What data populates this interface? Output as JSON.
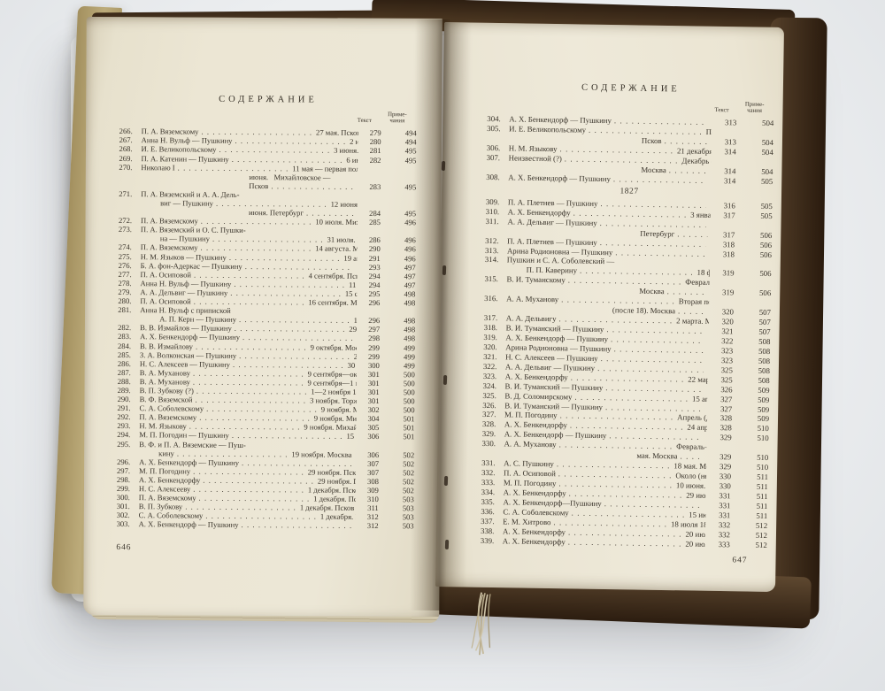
{
  "photo_of": "open book spread — table of contents of a Pushkin correspondence volume",
  "colors": {
    "paper": "#ece6d4",
    "ink": "#39332a",
    "cover_tan": "#b4a170",
    "cover_dark_edge": "#3a2a18",
    "background": "#eceef0"
  },
  "left_page": {
    "header": "СОДЕРЖАНИЕ",
    "col_text": "Текст",
    "col_note1": "Приме-",
    "col_note2": "чания",
    "page_number": "646",
    "rows": [
      {
        "n": "266.",
        "name": "П. А. Вяземскому",
        "nd": 1,
        "date": "27 мая. Псков",
        "dd": 1,
        "t": "279",
        "p": "494"
      },
      {
        "n": "267.",
        "name": "Анна Н. Вульф — Пушкину",
        "nd": 1,
        "date": "2 июня. Малинники",
        "dd": 1,
        "t": "280",
        "p": "494"
      },
      {
        "n": "268.",
        "name": "И. Е. Великопольскому",
        "nd": 1,
        "date": "3 июня. Преображенское",
        "dd": 1,
        "t": "281",
        "p": "495"
      },
      {
        "n": "269.",
        "name": "П. А. Катенин — Пушкину",
        "nd": 1,
        "date": "6 июня. Петербург",
        "dd": 1,
        "t": "282",
        "p": "495"
      },
      {
        "n": "270.",
        "name": "Николаю I",
        "nd": 1,
        "date": "11 мая — первая половина"
      },
      {
        "date": "июня.   Михайловское —"
      },
      {
        "date": "Псков",
        "dd": 1,
        "t": "283",
        "p": "495"
      },
      {
        "n": "271.",
        "name": "П. А. Вяземский и А. А. Дель-"
      },
      {
        "name": "виг — Пушкину",
        "ni": 1,
        "nd": 1,
        "date": "12 июня и вторая половина"
      },
      {
        "date": "июня. Петербург",
        "dd": 1,
        "t": "284",
        "p": "495"
      },
      {
        "n": "272.",
        "name": "П. А. Вяземскому",
        "nd": 1,
        "date": "10 июля. Михайловское",
        "dd": 1,
        "t": "285",
        "p": "496"
      },
      {
        "n": "273.",
        "name": "П. А. Вяземский и О. С. Пушки-"
      },
      {
        "name": "на — Пушкину",
        "ni": 1,
        "nd": 1,
        "date": "31 июля. Ревель",
        "dd": 1,
        "t": "286",
        "p": "496"
      },
      {
        "n": "274.",
        "name": "П. А. Вяземскому",
        "nd": 1,
        "date": "14 августа. Михайловское",
        "dd": 1,
        "t": "290",
        "p": "496"
      },
      {
        "n": "275.",
        "name": "Н. М. Языков — Пушкину",
        "nd": 1,
        "date": "19 августа. Дерпт",
        "dd": 1,
        "t": "291",
        "p": "496"
      },
      {
        "n": "276.",
        "name": "Б. А. фон-Адеркас — Пушкину",
        "nd": 1,
        "date": "3 сентября. Псков",
        "dd": 1,
        "t": "293",
        "p": "497"
      },
      {
        "n": "277.",
        "name": "П. А. Осиповой",
        "nd": 1,
        "date": "4 сентября. Псков",
        "dd": 1,
        "t": "294",
        "p": "497"
      },
      {
        "n": "278.",
        "name": "Анна Н. Вульф — Пушкину",
        "nd": 1,
        "date": "11 сентября. Петербург",
        "dd": 1,
        "t": "294",
        "p": "497"
      },
      {
        "n": "279.",
        "name": "А. А. Дельвиг — Пушкину",
        "nd": 1,
        "date": "15 сентября. Петербург",
        "dd": 1,
        "t": "295",
        "p": "498"
      },
      {
        "n": "280.",
        "name": "П. А. Осиповой",
        "nd": 1,
        "date": "16 сентября. Москва",
        "dd": 1,
        "t": "296",
        "p": "498"
      },
      {
        "n": "281.",
        "name": "Анна Н. Вульф с припиской"
      },
      {
        "name": "А. П. Керн — Пушкину",
        "ni": 1,
        "nd": 1,
        "date": "16 сентября. Петербург",
        "dd": 1,
        "t": "296",
        "p": "498"
      },
      {
        "n": "282.",
        "name": "В. В. Измайлов — Пушкину",
        "nd": 1,
        "date": "29 сентября. Подмосковная.",
        "t": "297",
        "p": "498"
      },
      {
        "n": "283.",
        "name": "А. Х. Бенкендорф — Пушкину",
        "nd": 1,
        "date": "30 сентября. Москва",
        "dd": 1,
        "t": "298",
        "p": "498"
      },
      {
        "n": "284.",
        "name": "В. В. Измайлову",
        "nd": 1,
        "date": "9 октября. Москва",
        "dd": 1,
        "t": "299",
        "p": "499"
      },
      {
        "n": "285.",
        "name": "З. А. Волконская — Пушкину",
        "nd": 1,
        "date": "29 октября. Москва",
        "dd": 1,
        "t": "299",
        "p": "499"
      },
      {
        "n": "286.",
        "name": "Н. С. Алексеев — Пушкину",
        "nd": 1,
        "date": "30 октября. Кишинев",
        "dd": 1,
        "t": "300",
        "p": "499"
      },
      {
        "n": "287.",
        "name": "В. А. Муханову",
        "nd": 1,
        "date": "9 сентября—октябрь. Москва",
        "t": "301",
        "p": "500"
      },
      {
        "n": "288.",
        "name": "В. А. Муханову",
        "nd": 1,
        "date": "9 сентября—1 ноября. Москва",
        "t": "301",
        "p": "500"
      },
      {
        "n": "289.",
        "name": "В. П. Зубкову (?)",
        "nd": 1,
        "date": "1—2 ноября 1826 (?). Москва",
        "t": "301",
        "p": "500"
      },
      {
        "n": "290.",
        "name": "В. Ф. Вяземской",
        "nd": 1,
        "date": "3 ноября. Торжок",
        "dd": 1,
        "t": "301",
        "p": "500"
      },
      {
        "n": "291.",
        "name": "С. А. Соболевскому",
        "nd": 1,
        "date": "9 ноября. Михайловское",
        "dd": 1,
        "t": "302",
        "p": "500"
      },
      {
        "n": "292.",
        "name": "П. А. Вяземскому",
        "nd": 1,
        "date": "9 ноября. Михайловское",
        "dd": 1,
        "t": "304",
        "p": "501"
      },
      {
        "n": "293.",
        "name": "Н. М. Языкову",
        "nd": 1,
        "date": "9 ноября. Михайловское",
        "dd": 1,
        "t": "305",
        "p": "501"
      },
      {
        "n": "294.",
        "name": "М. П. Погодин — Пушкину",
        "nd": 1,
        "date": "15 ноября. Москва",
        "dd": 1,
        "t": "306",
        "p": "501"
      },
      {
        "n": "295.",
        "name": "В. Ф. и П. А. Вяземские — Пуш-"
      },
      {
        "name": "кину",
        "ni": 1,
        "nd": 1,
        "date": "19 ноября. Москва",
        "dd": 1,
        "t": "306",
        "p": "502"
      },
      {
        "n": "296.",
        "name": "А. Х. Бенкендорф — Пушкину",
        "nd": 1,
        "date": "22 ноября. Петербург",
        "dd": 1,
        "t": "307",
        "p": "502"
      },
      {
        "n": "297.",
        "name": "М. П. Погодину",
        "nd": 1,
        "date": "29 ноября. Псков",
        "dd": 1,
        "t": "307",
        "p": "502"
      },
      {
        "n": "298.",
        "name": "А. Х. Бенкендорфу",
        "nd": 1,
        "date": "29 ноября. Псков",
        "dd": 1,
        "t": "308",
        "p": "502"
      },
      {
        "n": "299.",
        "name": "Н. С. Алексееву",
        "nd": 1,
        "date": "1 декабря. Псков",
        "dd": 1,
        "t": "309",
        "p": "502"
      },
      {
        "n": "300.",
        "name": "П. А. Вяземскому",
        "nd": 1,
        "date": "1 декабря. Псков",
        "dd": 1,
        "t": "310",
        "p": "503"
      },
      {
        "n": "301.",
        "name": "В. П. Зубкову",
        "nd": 1,
        "date": "1 декабря. Псков",
        "dd": 1,
        "t": "311",
        "p": "503"
      },
      {
        "n": "302.",
        "name": "С. А. Соболевскому",
        "nd": 1,
        "date": "1 декабря. Псков",
        "dd": 1,
        "t": "312",
        "p": "503"
      },
      {
        "n": "303.",
        "name": "А. Х. Бенкендорф — Пушкину",
        "nd": 1,
        "date": "9 декабря. Петербург",
        "dd": 1,
        "t": "312",
        "p": "503"
      }
    ]
  },
  "right_page": {
    "header": "СОДЕРЖАНИЕ",
    "col_text": "Текст",
    "col_note1": "Приме-",
    "col_note2": "чания",
    "page_number": "647",
    "rows": [
      {
        "n": "304.",
        "name": "А. Х. Бенкендорф — Пушкину",
        "nd": 1,
        "date": "14 декабря. Петербург",
        "dd": 1,
        "t": "313",
        "p": "504"
      },
      {
        "n": "305.",
        "name": "И. Е. Великопольскому",
        "nd": 1,
        "date": "Первая половина декабря."
      },
      {
        "date": "Псков",
        "di": 1,
        "dd": 1,
        "t": "313",
        "p": "504"
      },
      {
        "n": "306.",
        "name": "Н. М. Языкову",
        "nd": 1,
        "date": "21 декабря. Москва",
        "dd": 1,
        "t": "314",
        "p": "504"
      },
      {
        "n": "307.",
        "name": "Неизвестной (?)",
        "nd": 1,
        "date": "Декабрь (не позднее 22)."
      },
      {
        "date": "Москва",
        "di": 1,
        "dd": 1,
        "t": "314",
        "p": "504"
      },
      {
        "n": "308.",
        "name": "А. Х. Бенкендорф — Пушкину",
        "nd": 1,
        "date": "23 декабря. Петербург",
        "dd": 1,
        "t": "314",
        "p": "505"
      },
      {
        "section": "1827"
      },
      {
        "n": "309.",
        "name": "П. А. Плетнев — Пушкину",
        "nd": 1,
        "date": "2 января. Петербург",
        "dd": 1,
        "t": "316",
        "p": "505"
      },
      {
        "n": "310.",
        "name": "А. Х. Бенкендорфу",
        "nd": 1,
        "date": "3 января. Москва",
        "dd": 1,
        "t": "317",
        "p": "505"
      },
      {
        "n": "311.",
        "name": "А. А. Дельвиг — Пушкину",
        "nd": 1,
        "date": "Первая половина января (?)."
      },
      {
        "date": "Петербург",
        "di": 1,
        "dd": 1,
        "t": "317",
        "p": "506"
      },
      {
        "n": "312.",
        "name": "П. А. Плетнев — Пушкину",
        "nd": 1,
        "date": "18 января. Петербург",
        "dd": 1,
        "t": "318",
        "p": "506"
      },
      {
        "n": "313.",
        "name": "Арина Родионовна — Пушкину",
        "nd": 1,
        "date": "30 января. Михайловское",
        "dd": 1,
        "t": "318",
        "p": "506"
      },
      {
        "n": "314.",
        "name": "Пушкин и С. А. Соболевский —"
      },
      {
        "name": "П. П. Каверину",
        "ni": 1,
        "nd": 1,
        "date": "18 февраля. Москва",
        "dd": 1,
        "t": "319",
        "p": "506"
      },
      {
        "n": "315.",
        "name": "В. И. Туманскому",
        "nd": 1,
        "date": "Февраль (не позднее 23)."
      },
      {
        "date": "Москва",
        "di": 1,
        "dd": 1,
        "t": "319",
        "p": "506"
      },
      {
        "n": "316.",
        "name": "А. А. Муханову",
        "nd": 1,
        "date": "Вторая половина февраля"
      },
      {
        "date": "(после 18). Москва",
        "dd": 1,
        "t": "320",
        "p": "507"
      },
      {
        "n": "317.",
        "name": "А. А. Дельвигу",
        "nd": 1,
        "date": "2 марта. Москва",
        "dd": 1,
        "t": "320",
        "p": "507"
      },
      {
        "n": "318.",
        "name": "В. И. Туманский — Пушкину",
        "nd": 1,
        "date": "2 марта. Одесса",
        "dd": 1,
        "t": "321",
        "p": "507"
      },
      {
        "n": "319.",
        "name": "А. Х. Бенкендорф — Пушкину",
        "nd": 1,
        "date": "4 марта. Петербург",
        "dd": 1,
        "t": "322",
        "p": "508"
      },
      {
        "n": "320.",
        "name": "Арина Родионовна — Пушкину",
        "nd": 1,
        "date": "6 марта. Тригорское",
        "dd": 1,
        "t": "323",
        "p": "508"
      },
      {
        "n": "321.",
        "name": "Н. С. Алексеев — Пушкину",
        "nd": 1,
        "date": "20 марта. Крепость Хотин",
        "dd": 1,
        "t": "323",
        "p": "508"
      },
      {
        "n": "322.",
        "name": "А. А. Дельвиг — Пушкину",
        "nd": 1,
        "date": "21 марта. Петербург",
        "dd": 1,
        "t": "325",
        "p": "508"
      },
      {
        "n": "323.",
        "name": "А. Х. Бенкендорфу",
        "nd": 1,
        "date": "22 марта. Москва",
        "dd": 1,
        "t": "325",
        "p": "508"
      },
      {
        "n": "324.",
        "name": "В. И. Туманский — Пушкину",
        "nd": 1,
        "date": "12 апреля. Одесса",
        "dd": 1,
        "t": "326",
        "p": "509"
      },
      {
        "n": "325.",
        "name": "В. Д. Соломирскому",
        "nd": 1,
        "date": "15 апреля. Москва",
        "dd": 1,
        "t": "327",
        "p": "509"
      },
      {
        "n": "326.",
        "name": "В. И. Туманский — Пушкину",
        "nd": 1,
        "date": "20 (?) апреля. Одесса",
        "dd": 1,
        "t": "327",
        "p": "509"
      },
      {
        "n": "327.",
        "name": "М. П. Погодину",
        "nd": 1,
        "date": "Апрель (до 23). Москва",
        "dd": 1,
        "t": "328",
        "p": "509"
      },
      {
        "n": "328.",
        "name": "А. Х. Бенкендорфу",
        "nd": 1,
        "date": "24 апреля. Москва",
        "dd": 1,
        "t": "328",
        "p": "510"
      },
      {
        "n": "329.",
        "name": "А. Х. Бенкендорф — Пушкину",
        "nd": 1,
        "date": "3 мая. Петербург",
        "dd": 1,
        "t": "329",
        "p": "510"
      },
      {
        "n": "330.",
        "name": "А. А. Муханову",
        "nd": 1,
        "date": "Февраль—первая половина"
      },
      {
        "date": "мая. Москва",
        "di": 1,
        "dd": 1,
        "t": "329",
        "p": "510"
      },
      {
        "n": "331.",
        "name": "А. С. Пушкину",
        "nd": 1,
        "date": "18 мая. Москва",
        "dd": 1,
        "t": "329",
        "p": "510"
      },
      {
        "n": "332.",
        "name": "П. А. Осиповой",
        "nd": 1,
        "date": "Около (не позднее) 10 июня.",
        "t": "330",
        "p": "511"
      },
      {
        "n": "333.",
        "name": "М. П. Погодину",
        "nd": 1,
        "date": "10 июня. Петербург",
        "dd": 1,
        "t": "330",
        "p": "511"
      },
      {
        "n": "334.",
        "name": "А. Х. Бенкендорфу",
        "nd": 1,
        "date": "29 июня. Петербург",
        "dd": 1,
        "t": "331",
        "p": "511"
      },
      {
        "n": "335.",
        "name": "А. Х. Бенкендорф—Пушкину",
        "nd": 1,
        "date": "5 июля. Царское Село",
        "dd": 1,
        "t": "331",
        "p": "511"
      },
      {
        "n": "336.",
        "name": "С. А. Соболевскому",
        "nd": 1,
        "date": "15 июля. Петербург",
        "dd": 1,
        "t": "331",
        "p": "511"
      },
      {
        "n": "337.",
        "name": "Е. М. Хитрово",
        "nd": 1,
        "date": "18 июля 1827 (?) Петербург.",
        "t": "332",
        "p": "512"
      },
      {
        "n": "338.",
        "name": "А. Х. Бенкендорфу",
        "nd": 1,
        "date": "20 июля. Петербург",
        "dd": 1,
        "t": "332",
        "p": "512"
      },
      {
        "n": "339.",
        "name": "А. Х. Бенкендорфу",
        "nd": 1,
        "date": "20 июля. Петербург",
        "dd": 1,
        "t": "333",
        "p": "512"
      }
    ]
  }
}
